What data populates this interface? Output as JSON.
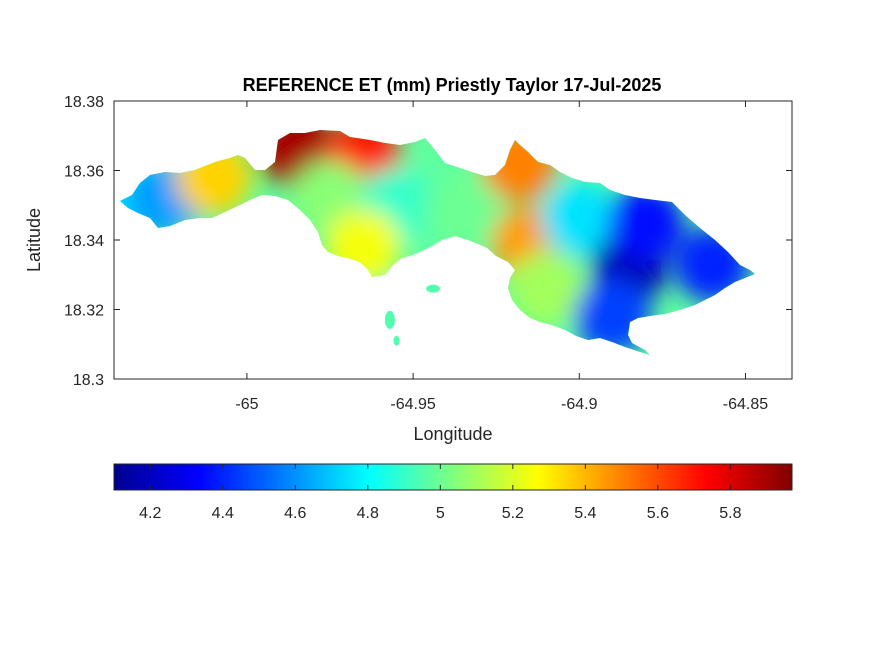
{
  "chart_data": {
    "type": "heatmap",
    "title": "REFERENCE ET (mm) Priestly Taylor 17-Jul-2025",
    "xlabel": "Longitude",
    "ylabel": "Latitude",
    "xlim": [
      -65.04,
      -64.836
    ],
    "ylim": [
      18.3,
      18.38
    ],
    "x_ticks": [
      -65,
      -64.95,
      -64.9,
      -64.85
    ],
    "x_tick_labels": [
      "-65",
      "-64.95",
      "-64.9",
      "-64.85"
    ],
    "y_ticks": [
      18.3,
      18.32,
      18.34,
      18.36,
      18.38
    ],
    "y_tick_labels": [
      "18.3",
      "18.32",
      "18.34",
      "18.36",
      "18.38"
    ],
    "colormap": "jet",
    "colorbar": {
      "location": "bottom",
      "range": [
        4.1,
        5.97
      ],
      "ticks": [
        4.2,
        4.4,
        4.6,
        4.8,
        5.0,
        5.2,
        5.4,
        5.6,
        5.8
      ],
      "tick_labels": [
        "4.2",
        "4.4",
        "4.6",
        "4.8",
        "5",
        "5.2",
        "5.4",
        "5.6",
        "5.8"
      ]
    },
    "grid": false,
    "regions": [
      {
        "name": "west-tip",
        "lon": -65.035,
        "lat": 18.353,
        "value": 4.75
      },
      {
        "name": "west-blue-patch",
        "lon": -65.025,
        "lat": 18.352,
        "value": 4.62
      },
      {
        "name": "west-yellow",
        "lon": -65.01,
        "lat": 18.358,
        "value": 5.35
      },
      {
        "name": "north-ridge",
        "lon": -64.985,
        "lat": 18.366,
        "value": 5.9
      },
      {
        "name": "north-ridge-east",
        "lon": -64.965,
        "lat": 18.364,
        "value": 5.7
      },
      {
        "name": "central-west",
        "lon": -64.975,
        "lat": 18.352,
        "value": 5.05
      },
      {
        "name": "central",
        "lon": -64.955,
        "lat": 18.35,
        "value": 4.9
      },
      {
        "name": "central-south",
        "lon": -64.965,
        "lat": 18.338,
        "value": 5.25
      },
      {
        "name": "central-east",
        "lon": -64.935,
        "lat": 18.348,
        "value": 5.0
      },
      {
        "name": "north-peninsula",
        "lon": -64.918,
        "lat": 18.362,
        "value": 5.5
      },
      {
        "name": "east-orange-spot",
        "lon": -64.915,
        "lat": 18.339,
        "value": 5.45
      },
      {
        "name": "southwest-of-east",
        "lon": -64.91,
        "lat": 18.326,
        "value": 5.1
      },
      {
        "name": "east-transition",
        "lon": -64.9,
        "lat": 18.346,
        "value": 4.75
      },
      {
        "name": "east-core",
        "lon": -64.885,
        "lat": 18.332,
        "value": 4.2
      },
      {
        "name": "east-northeast",
        "lon": -64.88,
        "lat": 18.345,
        "value": 4.35
      },
      {
        "name": "east-tip",
        "lon": -64.86,
        "lat": 18.333,
        "value": 4.4
      },
      {
        "name": "south-coast",
        "lon": -64.89,
        "lat": 18.318,
        "value": 4.45
      },
      {
        "name": "islet-south",
        "lon": -64.957,
        "lat": 18.317,
        "value": 4.95
      }
    ]
  }
}
